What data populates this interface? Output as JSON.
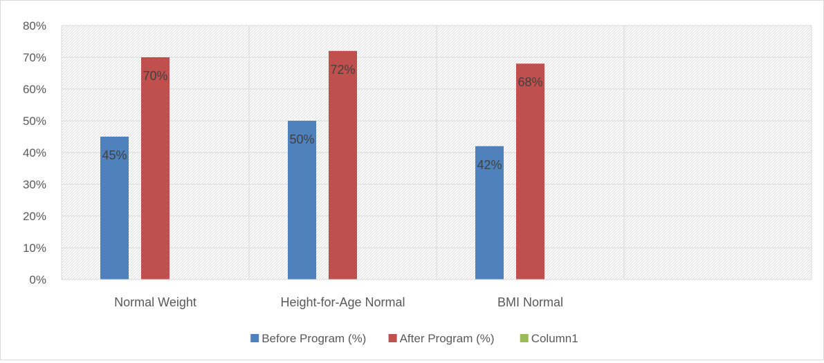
{
  "chart_data": {
    "type": "bar",
    "categories": [
      "Normal Weight",
      "Height-for-Age Normal",
      "BMI Normal",
      ""
    ],
    "series": [
      {
        "name": "Before Program (%)",
        "values": [
          45,
          50,
          42,
          null
        ],
        "color": "#4f81bd",
        "labels": [
          "45%",
          "50%",
          "42%",
          ""
        ]
      },
      {
        "name": "After Program (%)",
        "values": [
          70,
          72,
          68,
          null
        ],
        "color": "#c0504d",
        "labels": [
          "70%",
          "72%",
          "68%",
          ""
        ]
      },
      {
        "name": "Column1",
        "values": [
          null,
          null,
          null,
          null
        ],
        "color": "#9bbb59",
        "labels": [
          "",
          "",
          "",
          ""
        ]
      }
    ],
    "ylim": [
      0,
      80
    ],
    "yticks": [
      "0%",
      "10%",
      "20%",
      "30%",
      "40%",
      "50%",
      "60%",
      "70%",
      "80%"
    ],
    "grid": true,
    "legend_position": "bottom",
    "title": "",
    "xlabel": "",
    "ylabel": ""
  }
}
